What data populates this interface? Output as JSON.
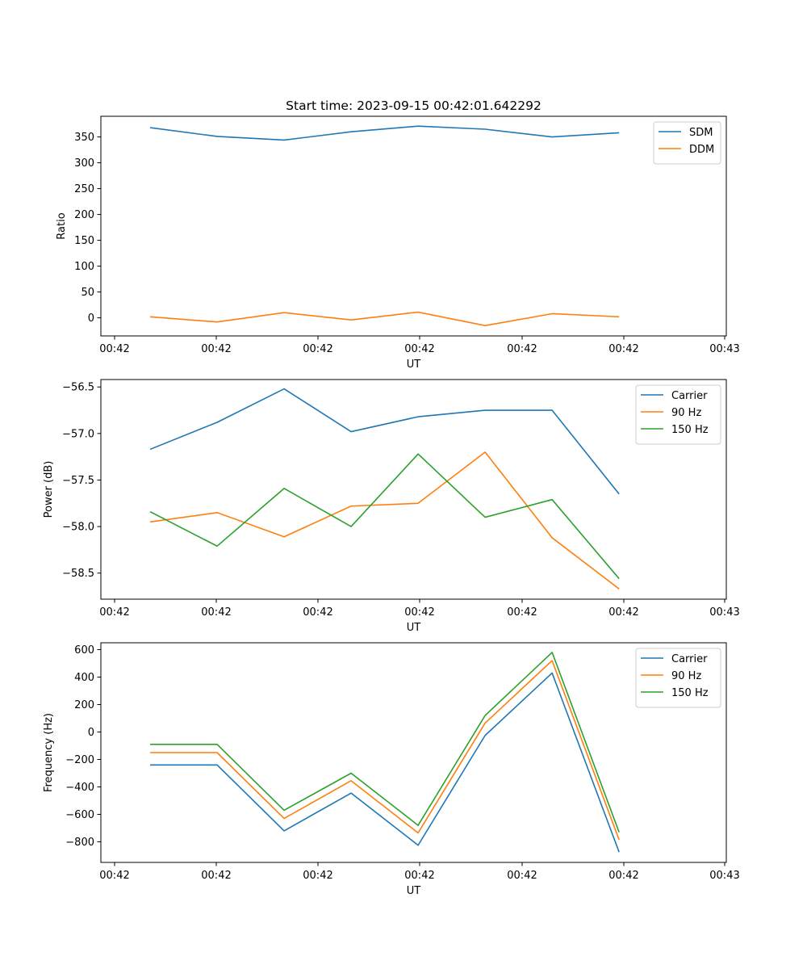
{
  "figure": {
    "title": "Start time: 2023-09-15 00:42:01.642292"
  },
  "colors": {
    "blue": "#1f77b4",
    "orange": "#ff7f0e",
    "green": "#2ca02c"
  },
  "chart_data": [
    {
      "type": "line",
      "title": "Start time: 2023-09-15 00:42:01.642292",
      "xlabel": "UT",
      "ylabel": "Ratio",
      "x_tick_labels": [
        "00:42",
        "00:42",
        "00:42",
        "00:42",
        "00:42",
        "00:42",
        "00:43"
      ],
      "x": [
        1,
        2,
        3,
        4,
        5,
        6,
        7,
        8
      ],
      "xlim": [
        0.265,
        9.6
      ],
      "ylim": [
        -35,
        390
      ],
      "yticks": [
        0,
        50,
        100,
        150,
        200,
        250,
        300,
        350
      ],
      "legend_position": "top-right",
      "series": [
        {
          "name": "SDM",
          "color": "#1f77b4",
          "values": [
            368,
            351,
            344,
            360,
            371,
            365,
            350,
            358
          ]
        },
        {
          "name": "DDM",
          "color": "#ff7f0e",
          "values": [
            2,
            -8,
            10,
            -4,
            11,
            -15,
            8,
            2
          ]
        }
      ]
    },
    {
      "type": "line",
      "title": "",
      "xlabel": "UT",
      "ylabel": "Power (dB)",
      "x_tick_labels": [
        "00:42",
        "00:42",
        "00:42",
        "00:42",
        "00:42",
        "00:42",
        "00:43"
      ],
      "x": [
        1,
        2,
        3,
        4,
        5,
        6,
        7,
        8
      ],
      "xlim": [
        0.265,
        9.6
      ],
      "ylim": [
        -58.78,
        -56.42
      ],
      "yticks": [
        -58.5,
        -58.0,
        -57.5,
        -57.0,
        -56.5
      ],
      "ytick_labels": [
        "−58.5",
        "−58.0",
        "−57.5",
        "−57.0",
        "−56.5"
      ],
      "legend_position": "top-right",
      "series": [
        {
          "name": "Carrier",
          "color": "#1f77b4",
          "values": [
            -57.17,
            -56.88,
            -56.52,
            -56.98,
            -56.82,
            -56.75,
            -56.75,
            -57.65
          ]
        },
        {
          "name": "90 Hz",
          "color": "#ff7f0e",
          "values": [
            -57.95,
            -57.85,
            -58.11,
            -57.78,
            -57.75,
            -57.2,
            -58.12,
            -58.67
          ]
        },
        {
          "name": "150 Hz",
          "color": "#2ca02c",
          "values": [
            -57.84,
            -58.21,
            -57.59,
            -58.0,
            -57.22,
            -57.9,
            -57.71,
            -58.56
          ]
        }
      ]
    },
    {
      "type": "line",
      "title": "",
      "xlabel": "UT",
      "ylabel": "Frequency (Hz)",
      "x_tick_labels": [
        "00:42",
        "00:42",
        "00:42",
        "00:42",
        "00:42",
        "00:42",
        "00:43"
      ],
      "x": [
        1,
        2,
        3,
        4,
        5,
        6,
        7,
        8
      ],
      "xlim": [
        0.265,
        9.6
      ],
      "ylim": [
        -950,
        650
      ],
      "yticks": [
        -800,
        -600,
        -400,
        -200,
        0,
        200,
        400,
        600
      ],
      "ytick_labels": [
        "−800",
        "−600",
        "−400",
        "−200",
        "0",
        "200",
        "400",
        "600"
      ],
      "legend_position": "top-right",
      "series": [
        {
          "name": "Carrier",
          "color": "#1f77b4",
          "values": [
            -240,
            -240,
            -720,
            -445,
            -825,
            -25,
            430,
            -875
          ]
        },
        {
          "name": "90 Hz",
          "color": "#ff7f0e",
          "values": [
            -150,
            -150,
            -630,
            -355,
            -735,
            65,
            520,
            -785
          ]
        },
        {
          "name": "150 Hz",
          "color": "#2ca02c",
          "values": [
            -90,
            -90,
            -570,
            -300,
            -680,
            120,
            580,
            -730
          ]
        }
      ]
    }
  ]
}
